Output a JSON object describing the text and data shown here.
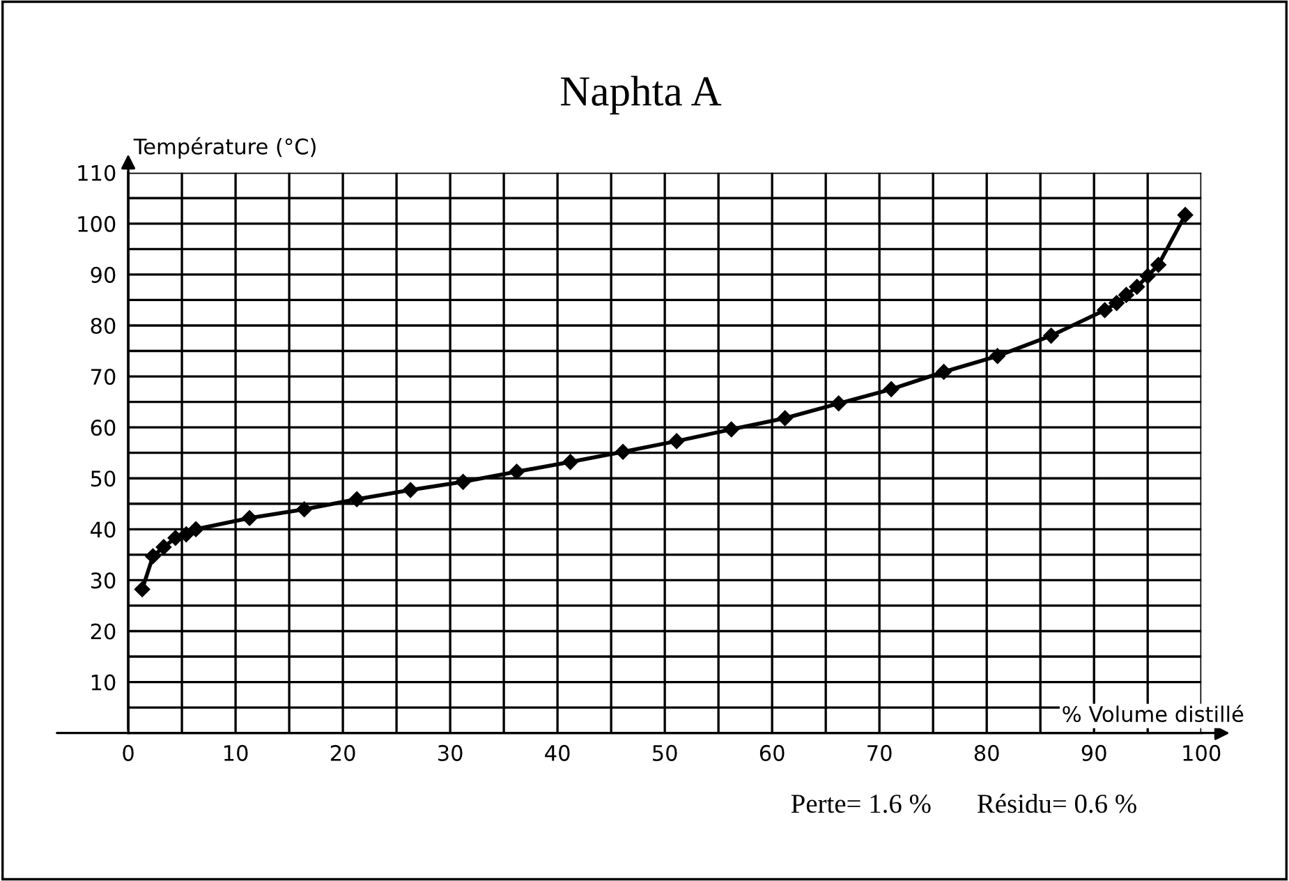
{
  "chart_data": {
    "type": "line",
    "title": "Naphta A",
    "xlabel": "% Volume distillé",
    "ylabel": "Température (°C)",
    "x": [
      1.3,
      2.3,
      3.3,
      4.4,
      5.4,
      6.3,
      11.3,
      16.4,
      21.3,
      26.3,
      31.2,
      36.2,
      41.2,
      46.1,
      51.1,
      56.2,
      61.2,
      66.2,
      71.1,
      76.0,
      81.0,
      86.0,
      91.0,
      92.1,
      93.0,
      94.0,
      95.0,
      96.0,
      98.5
    ],
    "series": [
      {
        "color": "#000000",
        "values": [
          28.2,
          34.7,
          36.5,
          38.3,
          39.0,
          40.0,
          42.2,
          43.9,
          45.9,
          47.7,
          49.3,
          51.3,
          53.2,
          55.2,
          57.3,
          59.6,
          61.8,
          64.7,
          67.5,
          70.9,
          74.0,
          78.0,
          83.0,
          84.4,
          86.0,
          87.6,
          89.7,
          91.9,
          101.7
        ]
      }
    ],
    "xlim": [
      0,
      100
    ],
    "ylim": [
      0,
      110
    ],
    "xticks": [
      0,
      {
        "value": 5,
        "label": null
      },
      10,
      {
        "value": 15,
        "label": null
      },
      20,
      {
        "value": 25,
        "label": null
      },
      30,
      {
        "value": 35,
        "label": null
      },
      40,
      {
        "value": 45,
        "label": null
      },
      50,
      {
        "value": 55,
        "label": null
      },
      60,
      {
        "value": 65,
        "label": null
      },
      70,
      {
        "value": 75,
        "label": null
      },
      80,
      {
        "value": 85,
        "label": null
      },
      90,
      {
        "value": 95,
        "label": null
      },
      100
    ],
    "yticks": [
      {
        "value": 5,
        "label": null
      },
      10,
      {
        "value": 15,
        "label": null
      },
      20,
      {
        "value": 25,
        "label": null
      },
      30,
      {
        "value": 35,
        "label": null
      },
      40,
      {
        "value": 45,
        "label": null
      },
      50,
      {
        "value": 55,
        "label": null
      },
      60,
      {
        "value": 65,
        "label": null
      },
      70,
      {
        "value": 75,
        "label": null
      },
      80,
      {
        "value": 85,
        "label": null
      },
      90,
      {
        "value": 95,
        "label": null
      },
      100,
      {
        "value": 105,
        "label": null
      },
      110
    ],
    "grid": true,
    "marker": "diamond",
    "line_style": "solid",
    "annotations": [
      "Perte= 1.6 %",
      "Résidu= 0.6 %"
    ]
  }
}
